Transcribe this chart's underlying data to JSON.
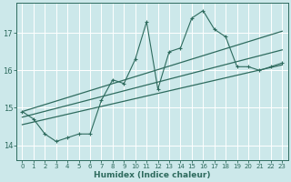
{
  "xlabel": "Humidex (Indice chaleur)",
  "bg_color": "#cce8ea",
  "grid_color": "#ffffff",
  "line_color": "#2e6b5e",
  "x_data": [
    0,
    1,
    2,
    3,
    4,
    5,
    6,
    7,
    8,
    9,
    10,
    11,
    12,
    13,
    14,
    15,
    16,
    17,
    18,
    19,
    20,
    21,
    22,
    23
  ],
  "y_scatter": [
    14.9,
    14.7,
    14.3,
    14.1,
    14.2,
    14.3,
    14.3,
    15.2,
    15.75,
    15.65,
    16.3,
    17.3,
    15.5,
    16.5,
    16.6,
    17.4,
    17.6,
    17.1,
    16.9,
    16.1,
    16.1,
    16.0,
    16.1,
    16.2
  ],
  "ylim": [
    13.6,
    17.8
  ],
  "xlim": [
    -0.5,
    23.5
  ],
  "yticks": [
    14,
    15,
    16,
    17
  ],
  "xticks": [
    0,
    1,
    2,
    3,
    4,
    5,
    6,
    7,
    8,
    9,
    10,
    11,
    12,
    13,
    14,
    15,
    16,
    17,
    18,
    19,
    20,
    21,
    22,
    23
  ],
  "line1_start": 14.55,
  "line1_end": 16.15,
  "line2_start": 14.75,
  "line2_end": 16.55,
  "line3_start": 14.9,
  "line3_end": 17.05
}
